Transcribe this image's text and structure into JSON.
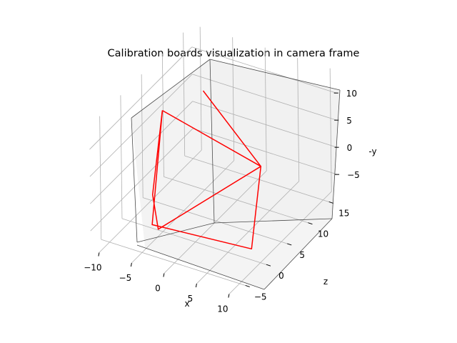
{
  "chart_data": {
    "type": "line3d",
    "title": "Calibration boards visualization in camera frame",
    "xlabel": "x",
    "ylabel": "z",
    "zlabel": "-y",
    "x_ticks": [
      "−10",
      "−5",
      "0",
      "5",
      "10"
    ],
    "y_ticks": [
      "−5",
      "0",
      "5",
      "10",
      "15"
    ],
    "z_ticks": [
      "−5",
      "0",
      "5",
      "10"
    ],
    "grid": true,
    "line_color": "#ff0000",
    "series": [
      {
        "points": [
          {
            "x": -6.7,
            "z": 2.8,
            "neg_y": 11.0
          },
          {
            "x": 5.8,
            "z": 6.8,
            "neg_y": 2.4
          },
          {
            "x": 8.0,
            "z": 1.0,
            "neg_y": -7.5
          },
          {
            "x": -4.7,
            "z": -3.0,
            "neg_y": -4.8
          },
          {
            "x": -6.7,
            "z": 2.8,
            "neg_y": 11.0
          }
        ]
      },
      {
        "points": [
          {
            "x": -5.4,
            "z": 10.5,
            "neg_y": 9.2
          },
          {
            "x": 5.8,
            "z": 6.8,
            "neg_y": 2.4
          },
          {
            "x": -4.1,
            "z": -2.5,
            "neg_y": -5.8
          },
          {
            "x": -7.0,
            "z": 0.7,
            "neg_y": -3.0
          },
          {
            "x": -6.7,
            "z": 2.8,
            "neg_y": 11.0
          }
        ]
      }
    ]
  }
}
